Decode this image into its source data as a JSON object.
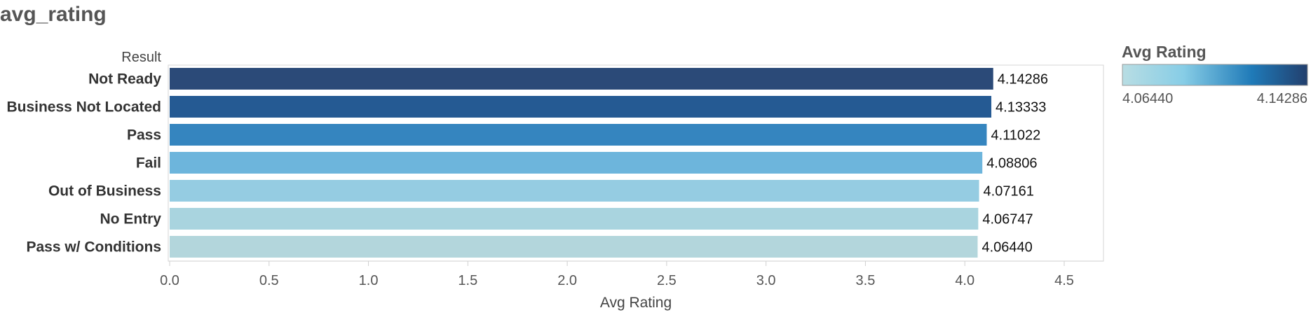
{
  "page": {
    "title": "avg_rating"
  },
  "chart_data": {
    "type": "bar",
    "orientation": "horizontal",
    "row_header": "Result",
    "categories": [
      "Not Ready",
      "Business Not Located",
      "Pass",
      "Fail",
      "Out of Business",
      "No Entry",
      "Pass w/ Conditions"
    ],
    "values": [
      4.14286,
      4.13333,
      4.11022,
      4.08806,
      4.07161,
      4.06747,
      4.0644
    ],
    "value_labels": [
      "4.14286",
      "4.13333",
      "4.11022",
      "4.08806",
      "4.07161",
      "4.06747",
      "4.06440"
    ],
    "xlabel": "Avg Rating",
    "xlim": [
      0,
      4.5
    ],
    "xticks": [
      "0.0",
      "0.5",
      "1.0",
      "1.5",
      "2.0",
      "2.5",
      "3.0",
      "3.5",
      "4.0",
      "4.5"
    ],
    "colors": [
      "#2b4a78",
      "#255a93",
      "#3585bf",
      "#6db5dc",
      "#95cce2",
      "#a9d4df",
      "#b3d6dc"
    ],
    "grid": false,
    "legend": {
      "title": "Avg Rating",
      "min_label": "4.06440",
      "max_label": "4.14286",
      "gradient": [
        "#b8dde3",
        "#87cde6",
        "#1f7ab8",
        "#223f6d"
      ],
      "placement": "right"
    }
  }
}
